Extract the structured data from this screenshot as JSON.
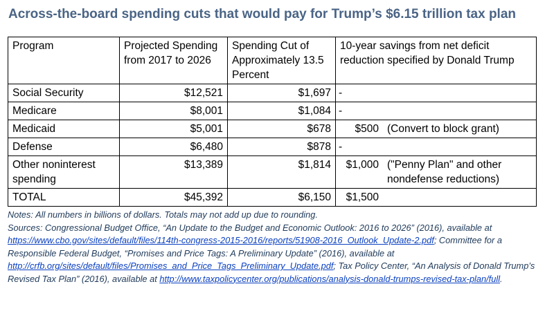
{
  "title": "Across-the-board spending cuts that would pay for Trump’s $6.15 trillion tax plan",
  "table": {
    "headers": [
      "Program",
      "Projected Spending from 2017 to 2026",
      "Spending Cut of Approximately 13.5 Percent",
      "10-year savings from net deficit reduction specified by Donald Trump"
    ],
    "rows": [
      {
        "program": "Social Security",
        "projected": "$12,521",
        "cut": "$1,697",
        "savings": "-",
        "note": ""
      },
      {
        "program": "Medicare",
        "projected": "$8,001",
        "cut": "$1,084",
        "savings": "-",
        "note": ""
      },
      {
        "program": "Medicaid",
        "projected": "$5,001",
        "cut": "$678",
        "savings": "$500",
        "note": "(Convert to block grant)"
      },
      {
        "program": "Defense",
        "projected": "$6,480",
        "cut": "$878",
        "savings": "-",
        "note": ""
      },
      {
        "program": "Other noninterest spending",
        "projected": "$13,389",
        "cut": "$1,814",
        "savings": "$1,000",
        "note": "(\"Penny Plan\" and other\nnondefense reductions)"
      },
      {
        "program": "TOTAL",
        "projected": "$45,392",
        "cut": "$6,150",
        "savings": "$1,500",
        "note": ""
      }
    ]
  },
  "notes": {
    "line1": "Notes: All numbers in billions of dollars. Totals may not add up due to rounding.",
    "src1": "Sources: Congressional Budget Office, “An Update to the Budget and Economic Outlook: 2016 to 2026” (2016), available at ",
    "link1": "https://www.cbo.gov/sites/default/files/114th-congress-2015-2016/reports/51908-2016_Outlook_Update-2.pdf",
    "src2": "; Committee for a Responsible Federal Budget, “Promises and Price Tags: A Preliminary Update” (2016), available at ",
    "link2": "http://crfb.org/sites/default/files/Promises_and_Price_Tags_Preliminary_Update.pdf",
    "src3": "; Tax Policy Center, “An Analysis of Donald Trump’s Revised Tax Plan” (2016), available at ",
    "link3": "http://www.taxpolicycenter.org/publications/analysis-donald-trumps-revised-tax-plan/full",
    "src4": "."
  }
}
